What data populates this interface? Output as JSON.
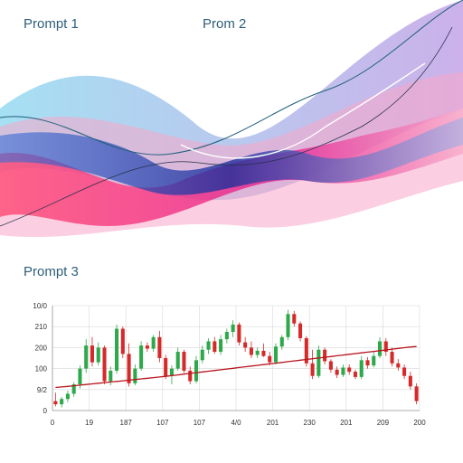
{
  "labels": {
    "prompt1": "Prompt 1",
    "prompt2": "Prom 2",
    "prompt3": "Prompt 3"
  },
  "colors": {
    "up": "#2ea84a",
    "down": "#d42a2a",
    "moving_average": "#b8141e",
    "grid": "#d8d8d8",
    "label": "#2e5f7a",
    "wave_palette": [
      "#7fd3ee",
      "#9fb0e8",
      "#3a6fd8",
      "#1d2f9a",
      "#e8158a",
      "#ff3f6a",
      "#f7a8c8",
      "#b68fe0",
      "#ffc4b8"
    ]
  },
  "chart_data": {
    "type": "candlestick",
    "title": "",
    "xlabel": "",
    "ylabel": "",
    "y_tick_labels": [
      "0",
      "9/2",
      "100",
      "200",
      "210",
      "10/0"
    ],
    "x_tick_labels": [
      "0",
      "19",
      "187",
      "107",
      "107",
      "4/0",
      "201",
      "230",
      "201",
      "209",
      "200"
    ],
    "grid": true,
    "ylim": [
      0,
      1000
    ],
    "candles": [
      {
        "o": 90,
        "h": 170,
        "l": 40,
        "c": 60
      },
      {
        "o": 60,
        "h": 130,
        "l": 30,
        "c": 110
      },
      {
        "o": 110,
        "h": 190,
        "l": 80,
        "c": 160
      },
      {
        "o": 160,
        "h": 270,
        "l": 130,
        "c": 250
      },
      {
        "o": 250,
        "h": 430,
        "l": 210,
        "c": 400
      },
      {
        "o": 400,
        "h": 680,
        "l": 360,
        "c": 620
      },
      {
        "o": 620,
        "h": 700,
        "l": 420,
        "c": 460
      },
      {
        "o": 460,
        "h": 650,
        "l": 430,
        "c": 600
      },
      {
        "o": 600,
        "h": 620,
        "l": 250,
        "c": 280
      },
      {
        "o": 280,
        "h": 420,
        "l": 240,
        "c": 380
      },
      {
        "o": 380,
        "h": 820,
        "l": 350,
        "c": 780
      },
      {
        "o": 780,
        "h": 800,
        "l": 500,
        "c": 540
      },
      {
        "o": 540,
        "h": 640,
        "l": 230,
        "c": 260
      },
      {
        "o": 260,
        "h": 440,
        "l": 240,
        "c": 400
      },
      {
        "o": 400,
        "h": 660,
        "l": 380,
        "c": 620
      },
      {
        "o": 620,
        "h": 650,
        "l": 560,
        "c": 590
      },
      {
        "o": 590,
        "h": 720,
        "l": 560,
        "c": 700
      },
      {
        "o": 700,
        "h": 760,
        "l": 460,
        "c": 500
      },
      {
        "o": 500,
        "h": 530,
        "l": 300,
        "c": 330
      },
      {
        "o": 330,
        "h": 430,
        "l": 250,
        "c": 400
      },
      {
        "o": 400,
        "h": 600,
        "l": 380,
        "c": 560
      },
      {
        "o": 560,
        "h": 580,
        "l": 360,
        "c": 380
      },
      {
        "o": 380,
        "h": 420,
        "l": 250,
        "c": 280
      },
      {
        "o": 280,
        "h": 520,
        "l": 260,
        "c": 480
      },
      {
        "o": 480,
        "h": 620,
        "l": 450,
        "c": 580
      },
      {
        "o": 580,
        "h": 690,
        "l": 540,
        "c": 660
      },
      {
        "o": 660,
        "h": 700,
        "l": 540,
        "c": 560
      },
      {
        "o": 560,
        "h": 720,
        "l": 530,
        "c": 680
      },
      {
        "o": 680,
        "h": 780,
        "l": 640,
        "c": 750
      },
      {
        "o": 750,
        "h": 860,
        "l": 700,
        "c": 820
      },
      {
        "o": 820,
        "h": 840,
        "l": 620,
        "c": 650
      },
      {
        "o": 650,
        "h": 700,
        "l": 560,
        "c": 600
      },
      {
        "o": 600,
        "h": 660,
        "l": 500,
        "c": 530
      },
      {
        "o": 530,
        "h": 600,
        "l": 500,
        "c": 570
      },
      {
        "o": 570,
        "h": 640,
        "l": 510,
        "c": 520
      },
      {
        "o": 520,
        "h": 560,
        "l": 430,
        "c": 460
      },
      {
        "o": 460,
        "h": 640,
        "l": 440,
        "c": 610
      },
      {
        "o": 610,
        "h": 720,
        "l": 580,
        "c": 700
      },
      {
        "o": 700,
        "h": 960,
        "l": 670,
        "c": 920
      },
      {
        "o": 920,
        "h": 950,
        "l": 800,
        "c": 830
      },
      {
        "o": 830,
        "h": 850,
        "l": 660,
        "c": 690
      },
      {
        "o": 690,
        "h": 710,
        "l": 420,
        "c": 450
      },
      {
        "o": 450,
        "h": 580,
        "l": 300,
        "c": 330
      },
      {
        "o": 330,
        "h": 620,
        "l": 310,
        "c": 580
      },
      {
        "o": 580,
        "h": 600,
        "l": 440,
        "c": 470
      },
      {
        "o": 470,
        "h": 490,
        "l": 360,
        "c": 390
      },
      {
        "o": 390,
        "h": 420,
        "l": 310,
        "c": 340
      },
      {
        "o": 340,
        "h": 440,
        "l": 320,
        "c": 410
      },
      {
        "o": 410,
        "h": 440,
        "l": 340,
        "c": 370
      },
      {
        "o": 370,
        "h": 390,
        "l": 300,
        "c": 320
      },
      {
        "o": 320,
        "h": 520,
        "l": 300,
        "c": 480
      },
      {
        "o": 480,
        "h": 510,
        "l": 400,
        "c": 430
      },
      {
        "o": 430,
        "h": 560,
        "l": 410,
        "c": 520
      },
      {
        "o": 520,
        "h": 700,
        "l": 500,
        "c": 660
      },
      {
        "o": 660,
        "h": 690,
        "l": 520,
        "c": 560
      },
      {
        "o": 560,
        "h": 600,
        "l": 420,
        "c": 450
      },
      {
        "o": 450,
        "h": 490,
        "l": 380,
        "c": 410
      },
      {
        "o": 410,
        "h": 440,
        "l": 300,
        "c": 330
      },
      {
        "o": 330,
        "h": 370,
        "l": 200,
        "c": 230
      },
      {
        "o": 230,
        "h": 260,
        "l": 60,
        "c": 90
      }
    ],
    "moving_average": [
      220,
      225,
      230,
      236,
      242,
      248,
      254,
      260,
      266,
      272,
      278,
      284,
      290,
      296,
      302,
      308,
      314,
      320,
      326,
      333,
      340,
      347,
      354,
      361,
      368,
      375,
      382,
      389,
      396,
      403,
      410,
      417,
      424,
      431,
      438,
      445,
      452,
      459,
      466,
      473,
      480,
      487,
      494,
      501,
      508,
      515,
      522,
      529,
      536,
      543,
      550,
      557,
      564,
      571,
      578,
      585,
      592,
      599,
      606,
      610
    ]
  }
}
